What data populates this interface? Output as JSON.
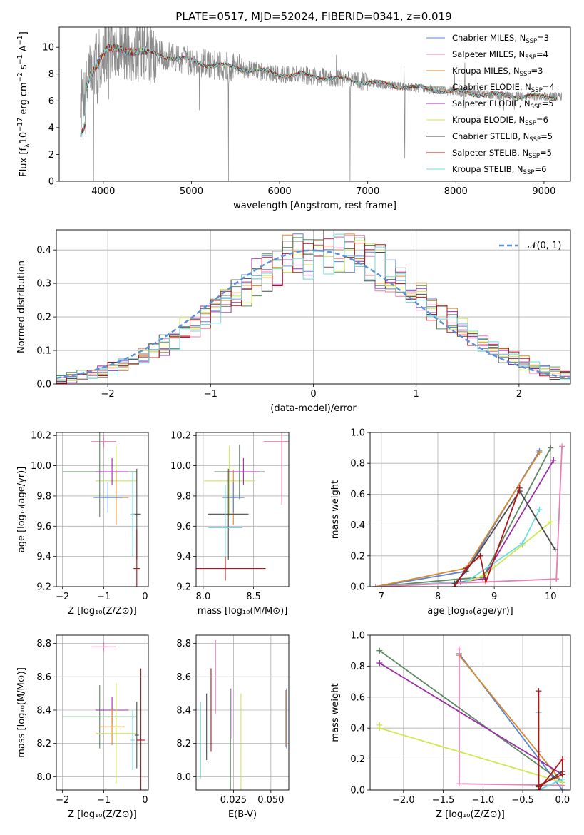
{
  "title": "PLATE=0517, MJD=52024, FIBERID=0341, z=0.019",
  "colors": {
    "Chabrier MILES": "#5b84d6",
    "Salpeter MILES": "#e77fb5",
    "Kroupa MILES": "#d98a2c",
    "Chabrier ELODIE": "#5e8862",
    "Salpeter ELODIE": "#9c2ea8",
    "Kroupa ELODIE": "#cfe84f",
    "Chabrier STELIB": "#4a4a4a",
    "Salpeter STELIB": "#b01515",
    "Kroupa STELIB": "#6fdbe0",
    "data": "#8a8a8a",
    "normal": "#5b8fd6",
    "grid": "#b0b0b0"
  },
  "chart_data": [
    {
      "type": "line",
      "panel": "spectrum",
      "xlabel": "wavelength [Angstrom, rest frame]",
      "ylabel_parts": [
        "Flux [f",
        "λ",
        "10",
        "−17",
        " erg cm",
        "−2",
        " s",
        "−1",
        " A",
        "−1",
        "]"
      ],
      "xlim": [
        3500,
        9300
      ],
      "ylim": [
        0,
        11.5
      ],
      "xticks": [
        4000,
        5000,
        6000,
        7000,
        8000,
        9000
      ],
      "yticks": [
        0,
        2,
        4,
        6,
        8,
        10
      ],
      "legend_position": "top-right",
      "legend": [
        {
          "model": "Chabrier MILES",
          "label": "Chabrier MILES, N",
          "sub": "SSP",
          "suffix": "=3"
        },
        {
          "model": "Salpeter MILES",
          "label": "Salpeter MILES, N",
          "sub": "SSP",
          "suffix": "=4"
        },
        {
          "model": "Kroupa MILES",
          "label": "Kroupa MILES, N",
          "sub": "SSP",
          "suffix": "=3"
        },
        {
          "model": "Chabrier ELODIE",
          "label": "Chabrier ELODIE, N",
          "sub": "SSP",
          "suffix": "=4"
        },
        {
          "model": "Salpeter ELODIE",
          "label": "Salpeter ELODIE, N",
          "sub": "SSP",
          "suffix": "=5"
        },
        {
          "model": "Kroupa ELODIE",
          "label": "Kroupa ELODIE, N",
          "sub": "SSP",
          "suffix": "=6"
        },
        {
          "model": "Chabrier STELIB",
          "label": "Chabrier STELIB, N",
          "sub": "SSP",
          "suffix": "=5"
        },
        {
          "model": "Salpeter STELIB",
          "label": "Salpeter STELIB, N",
          "sub": "SSP",
          "suffix": "=5"
        },
        {
          "model": "Kroupa STELIB",
          "label": "Kroupa STELIB, N",
          "sub": "SSP",
          "suffix": "=6"
        }
      ],
      "continuum": [
        [
          3750,
          6.0
        ],
        [
          3850,
          8.0
        ],
        [
          3950,
          9.0
        ],
        [
          4050,
          9.8
        ],
        [
          4200,
          9.9
        ],
        [
          4400,
          9.7
        ],
        [
          4600,
          9.5
        ],
        [
          4800,
          9.2
        ],
        [
          5000,
          9.0
        ],
        [
          5200,
          8.7
        ],
        [
          5500,
          8.5
        ],
        [
          5800,
          8.2
        ],
        [
          6000,
          8.0
        ],
        [
          6300,
          7.9
        ],
        [
          6600,
          7.7
        ],
        [
          6900,
          7.5
        ],
        [
          7200,
          7.2
        ],
        [
          7500,
          7.0
        ],
        [
          7800,
          6.8
        ],
        [
          8100,
          6.6
        ],
        [
          8400,
          6.45
        ],
        [
          8700,
          6.35
        ],
        [
          9000,
          6.3
        ],
        [
          9200,
          6.3
        ]
      ],
      "dips": [
        {
          "wave": 3800,
          "flux": 3.5
        },
        {
          "wave": 3890,
          "flux": 0.0
        },
        {
          "wave": 3934,
          "flux": 4.2
        },
        {
          "wave": 4101,
          "flux": 7.0
        },
        {
          "wave": 4300,
          "flux": 7.4
        },
        {
          "wave": 4340,
          "flux": 7.5
        },
        {
          "wave": 4861,
          "flux": 8.0
        },
        {
          "wave": 5175,
          "flux": 7.8
        },
        {
          "wave": 5420,
          "flux": 0.0
        },
        {
          "wave": 5890,
          "flux": 7.4
        },
        {
          "wave": 6563,
          "flux": 7.2
        },
        {
          "wave": 6800,
          "flux": 0.0
        },
        {
          "wave": 7420,
          "flux": 0.0
        },
        {
          "wave": 8498,
          "flux": 5.5
        },
        {
          "wave": 8542,
          "flux": 5.0
        },
        {
          "wave": 8662,
          "flux": 5.1
        }
      ]
    },
    {
      "type": "histogram",
      "panel": "residuals",
      "xlabel": "(data-model)/error",
      "ylabel": "Normed distribution",
      "xlim": [
        -2.5,
        2.5
      ],
      "ylim": [
        0,
        0.46
      ],
      "xticks": [
        -2,
        -1,
        0,
        1,
        2
      ],
      "yticks": [
        0.0,
        0.1,
        0.2,
        0.3,
        0.4
      ],
      "bin_width": 0.1,
      "legend_position": "top-right",
      "normal_label": "𝒩(0, 1)"
    },
    {
      "type": "scatter",
      "panel": "age-vs-Z",
      "xlabel": "Z [log₁₀(Z/Z⊙)]",
      "ylabel": "age  [log₁₀(age/yr)]",
      "xlim": [
        -2.15,
        0.08
      ],
      "ylim": [
        9.2,
        10.22
      ],
      "xticks": [
        -2,
        -1,
        0
      ],
      "yticks": [
        9.2,
        9.4,
        9.6,
        9.8,
        10.0,
        10.2
      ],
      "points": [
        {
          "model": "Salpeter MILES",
          "x": -1.0,
          "xerr": 0.3,
          "y": 10.16,
          "yerr": 0.04
        },
        {
          "model": "Kroupa ELODIE",
          "x": -0.7,
          "xerr": 0.5,
          "y": 9.9,
          "yerr": 0.23
        },
        {
          "model": "Chabrier ELODIE",
          "x": -1.1,
          "xerr": 0.9,
          "y": 9.96,
          "yerr": 0.3
        },
        {
          "model": "Salpeter ELODIE",
          "x": -0.8,
          "xerr": 0.4,
          "y": 9.96,
          "yerr": 0.09
        },
        {
          "model": "Kroupa MILES",
          "x": -0.7,
          "xerr": 0.3,
          "y": 9.79,
          "yerr": 0.18
        },
        {
          "model": "Chabrier MILES",
          "x": -0.9,
          "xerr": 0.35,
          "y": 9.79,
          "yerr": 0.1
        },
        {
          "model": "Chabrier STELIB",
          "x": -0.2,
          "xerr": 0.1,
          "y": 9.68,
          "yerr": 0.3
        },
        {
          "model": "Kroupa STELIB",
          "x": -0.3,
          "xerr": 0.05,
          "y": 9.68,
          "yerr": 0.28
        },
        {
          "model": "Salpeter STELIB",
          "x": -0.2,
          "xerr": 0.08,
          "y": 9.32,
          "yerr": 0.26
        }
      ]
    },
    {
      "type": "scatter",
      "panel": "age-vs-mass",
      "xlabel": "mass [log₁₀(M/M⊙)]",
      "ylabel": "",
      "xlim": [
        7.93,
        8.85
      ],
      "ylim": [
        9.2,
        10.22
      ],
      "xticks": [
        8.0,
        8.5
      ],
      "yticks": [
        9.2,
        9.4,
        9.6,
        9.8,
        10.0,
        10.2
      ],
      "points": [
        {
          "model": "Salpeter MILES",
          "x": 8.78,
          "xerr": 0.18,
          "y": 10.16,
          "yerr": 0.42
        },
        {
          "model": "Kroupa ELODIE",
          "x": 8.26,
          "xerr": 0.25,
          "y": 9.9,
          "yerr": 0.23
        },
        {
          "model": "Chabrier ELODIE",
          "x": 8.36,
          "xerr": 0.25,
          "y": 9.96,
          "yerr": 0.18
        },
        {
          "model": "Salpeter ELODIE",
          "x": 8.4,
          "xerr": 0.16,
          "y": 9.96,
          "yerr": 0.09
        },
        {
          "model": "Kroupa MILES",
          "x": 8.3,
          "xerr": 0.11,
          "y": 9.79,
          "yerr": 0.18
        },
        {
          "model": "Chabrier MILES",
          "x": 8.3,
          "xerr": 0.1,
          "y": 9.79,
          "yerr": 0.1
        },
        {
          "model": "Chabrier STELIB",
          "x": 8.25,
          "xerr": 0.2,
          "y": 9.68,
          "yerr": 0.3
        },
        {
          "model": "Kroupa STELIB",
          "x": 8.22,
          "xerr": 0.17,
          "y": 9.59,
          "yerr": 0.28
        },
        {
          "model": "Salpeter STELIB",
          "x": 8.22,
          "xerr": 0.4,
          "y": 9.32,
          "yerr": 0.08
        }
      ]
    },
    {
      "type": "line",
      "panel": "mass-weight-vs-age",
      "xlabel": "age  [log₁₀(age/yr)]",
      "ylabel": "mass weight",
      "xlim": [
        6.8,
        10.35
      ],
      "ylim": [
        0,
        1.0
      ],
      "xticks": [
        7,
        8,
        9,
        10
      ],
      "yticks": [
        0.0,
        0.2,
        0.4,
        0.6,
        0.8,
        1.0
      ],
      "series": [
        {
          "model": "Chabrier MILES",
          "points": [
            [
              6.9,
              0.0
            ],
            [
              8.5,
              0.1
            ],
            [
              9.8,
              0.88
            ]
          ]
        },
        {
          "model": "Kroupa MILES",
          "points": [
            [
              6.9,
              0.0
            ],
            [
              8.5,
              0.12
            ],
            [
              9.8,
              0.87
            ]
          ]
        },
        {
          "model": "Chabrier ELODIE",
          "points": [
            [
              6.9,
              0.0
            ],
            [
              8.4,
              0.05
            ],
            [
              8.8,
              0.06
            ],
            [
              10.0,
              0.9
            ]
          ]
        },
        {
          "model": "Salpeter ELODIE",
          "points": [
            [
              6.9,
              0.0
            ],
            [
              8.4,
              0.03
            ],
            [
              8.8,
              0.05
            ],
            [
              10.05,
              0.82
            ]
          ]
        },
        {
          "model": "Kroupa ELODIE",
          "points": [
            [
              6.9,
              0.0
            ],
            [
              8.5,
              0.03
            ],
            [
              8.8,
              0.07
            ],
            [
              9.5,
              0.27
            ],
            [
              10.0,
              0.42
            ]
          ]
        },
        {
          "model": "Kroupa STELIB",
          "points": [
            [
              6.9,
              0.0
            ],
            [
              8.5,
              0.03
            ],
            [
              9.5,
              0.28
            ],
            [
              9.8,
              0.5
            ]
          ]
        },
        {
          "model": "Salpeter MILES",
          "points": [
            [
              6.9,
              0.0
            ],
            [
              10.1,
              0.05
            ],
            [
              10.2,
              0.91
            ]
          ]
        },
        {
          "model": "Chabrier STELIB",
          "points": [
            [
              8.3,
              0.02
            ],
            [
              8.5,
              0.1
            ],
            [
              9.45,
              0.62
            ],
            [
              10.08,
              0.24
            ]
          ]
        },
        {
          "model": "Salpeter STELIB",
          "points": [
            [
              8.3,
              0.0
            ],
            [
              8.5,
              0.12
            ],
            [
              8.75,
              0.2
            ],
            [
              8.85,
              0.03
            ],
            [
              9.45,
              0.64
            ]
          ]
        }
      ]
    },
    {
      "type": "scatter",
      "panel": "mass-vs-Z",
      "xlabel": "Z [log₁₀(Z/Z⊙)]",
      "ylabel": "mass [log₁₀(M/M⊙)]",
      "xlim": [
        -2.15,
        0.08
      ],
      "ylim": [
        7.92,
        8.85
      ],
      "xticks": [
        -2,
        -1,
        0
      ],
      "yticks": [
        8.0,
        8.2,
        8.4,
        8.6,
        8.8
      ],
      "points": [
        {
          "model": "Salpeter MILES",
          "x": -1.0,
          "xerr": 0.3,
          "y": 8.78,
          "yerr": 0.03
        },
        {
          "model": "Chabrier ELODIE",
          "x": -1.1,
          "xerr": 0.9,
          "y": 8.36,
          "yerr": 0.19
        },
        {
          "model": "Salpeter ELODIE",
          "x": -0.8,
          "xerr": 0.4,
          "y": 8.4,
          "yerr": 0.08
        },
        {
          "model": "Kroupa MILES",
          "x": -0.8,
          "xerr": 0.3,
          "y": 8.3,
          "yerr": 0.11
        },
        {
          "model": "Kroupa ELODIE",
          "x": -0.7,
          "xerr": 0.5,
          "y": 8.26,
          "yerr": 0.3
        },
        {
          "model": "Chabrier STELIB",
          "x": -0.2,
          "xerr": 0.05,
          "y": 8.25,
          "yerr": 0.2
        },
        {
          "model": "Kroupa STELIB",
          "x": -0.3,
          "xerr": 0.05,
          "y": 8.22,
          "yerr": 0.18
        },
        {
          "model": "Salpeter STELIB",
          "x": -0.1,
          "xerr": 0.1,
          "y": 8.22,
          "yerr": 0.43
        }
      ]
    },
    {
      "type": "scatter",
      "panel": "mass-vs-ebv",
      "xlabel": "E(B-V)",
      "ylabel": "",
      "xlim": [
        0.0,
        0.062
      ],
      "ylim": [
        7.92,
        8.85
      ],
      "xticks": [
        0.025,
        0.05
      ],
      "yticks": [
        8.0,
        8.2,
        8.4,
        8.6,
        8.8
      ],
      "points": [
        {
          "model": "Kroupa STELIB",
          "x": 0.003,
          "y": 8.22,
          "yerr": 0.23
        },
        {
          "model": "Chabrier STELIB",
          "x": 0.007,
          "y": 8.3,
          "yerr": 0.2
        },
        {
          "model": "Salpeter STELIB",
          "x": 0.01,
          "y": 8.4,
          "yerr": 0.25
        },
        {
          "model": "Salpeter MILES",
          "x": 0.013,
          "y": 8.6,
          "yerr": 0.22
        },
        {
          "model": "Chabrier ELODIE",
          "x": 0.023,
          "y": 8.15,
          "yerr": 0.38
        },
        {
          "model": "Salpeter ELODIE",
          "x": 0.024,
          "y": 8.38,
          "yerr": 0.15
        },
        {
          "model": "Kroupa ELODIE",
          "x": 0.03,
          "y": 8.16,
          "yerr": 0.34
        },
        {
          "model": "Kroupa MILES",
          "x": 0.06,
          "y": 8.35,
          "yerr": 0.17
        },
        {
          "model": "Chabrier MILES",
          "x": 0.0605,
          "y": 8.35,
          "yerr": 0.18
        }
      ]
    },
    {
      "type": "line",
      "panel": "mass-weight-vs-Z",
      "xlabel": "Z [log₁₀(Z/Z⊙)]",
      "ylabel": "mass weight",
      "xlim": [
        -2.42,
        0.1
      ],
      "ylim": [
        0,
        1.0
      ],
      "xticks": [
        -2.0,
        -1.5,
        -1.0,
        -0.5,
        0.0
      ],
      "yticks": [
        0.0,
        0.2,
        0.4,
        0.6,
        0.8,
        1.0
      ],
      "series": [
        {
          "model": "Chabrier MILES",
          "points": [
            [
              -1.3,
              0.88
            ],
            [
              0.0,
              0.0
            ]
          ]
        },
        {
          "model": "Kroupa MILES",
          "points": [
            [
              -1.3,
              0.87
            ],
            [
              0.0,
              0.05
            ]
          ]
        },
        {
          "model": "Salpeter MILES",
          "points": [
            [
              -1.3,
              0.91
            ],
            [
              -1.3,
              0.04
            ],
            [
              0.0,
              0.03
            ]
          ]
        },
        {
          "model": "Chabrier ELODIE",
          "points": [
            [
              -2.3,
              0.9
            ],
            [
              0.0,
              0.05
            ]
          ]
        },
        {
          "model": "Salpeter ELODIE",
          "points": [
            [
              -2.3,
              0.82
            ],
            [
              0.0,
              0.1
            ]
          ]
        },
        {
          "model": "Kroupa ELODIE",
          "points": [
            [
              -2.3,
              0.42
            ],
            [
              -2.3,
              0.4
            ],
            [
              0.0,
              0.05
            ]
          ]
        },
        {
          "model": "Kroupa STELIB",
          "points": [
            [
              -0.3,
              0.5
            ],
            [
              -0.3,
              0.0
            ],
            [
              0.0,
              0.07
            ]
          ]
        },
        {
          "model": "Chabrier STELIB",
          "points": [
            [
              -0.3,
              0.25
            ],
            [
              -0.3,
              0.02
            ],
            [
              0.0,
              0.12
            ]
          ]
        },
        {
          "model": "Salpeter STELIB",
          "points": [
            [
              -0.3,
              0.64
            ],
            [
              -0.3,
              0.0
            ],
            [
              0.0,
              0.2
            ],
            [
              0.0,
              0.1
            ],
            [
              -0.3,
              0.03
            ]
          ]
        }
      ]
    }
  ]
}
